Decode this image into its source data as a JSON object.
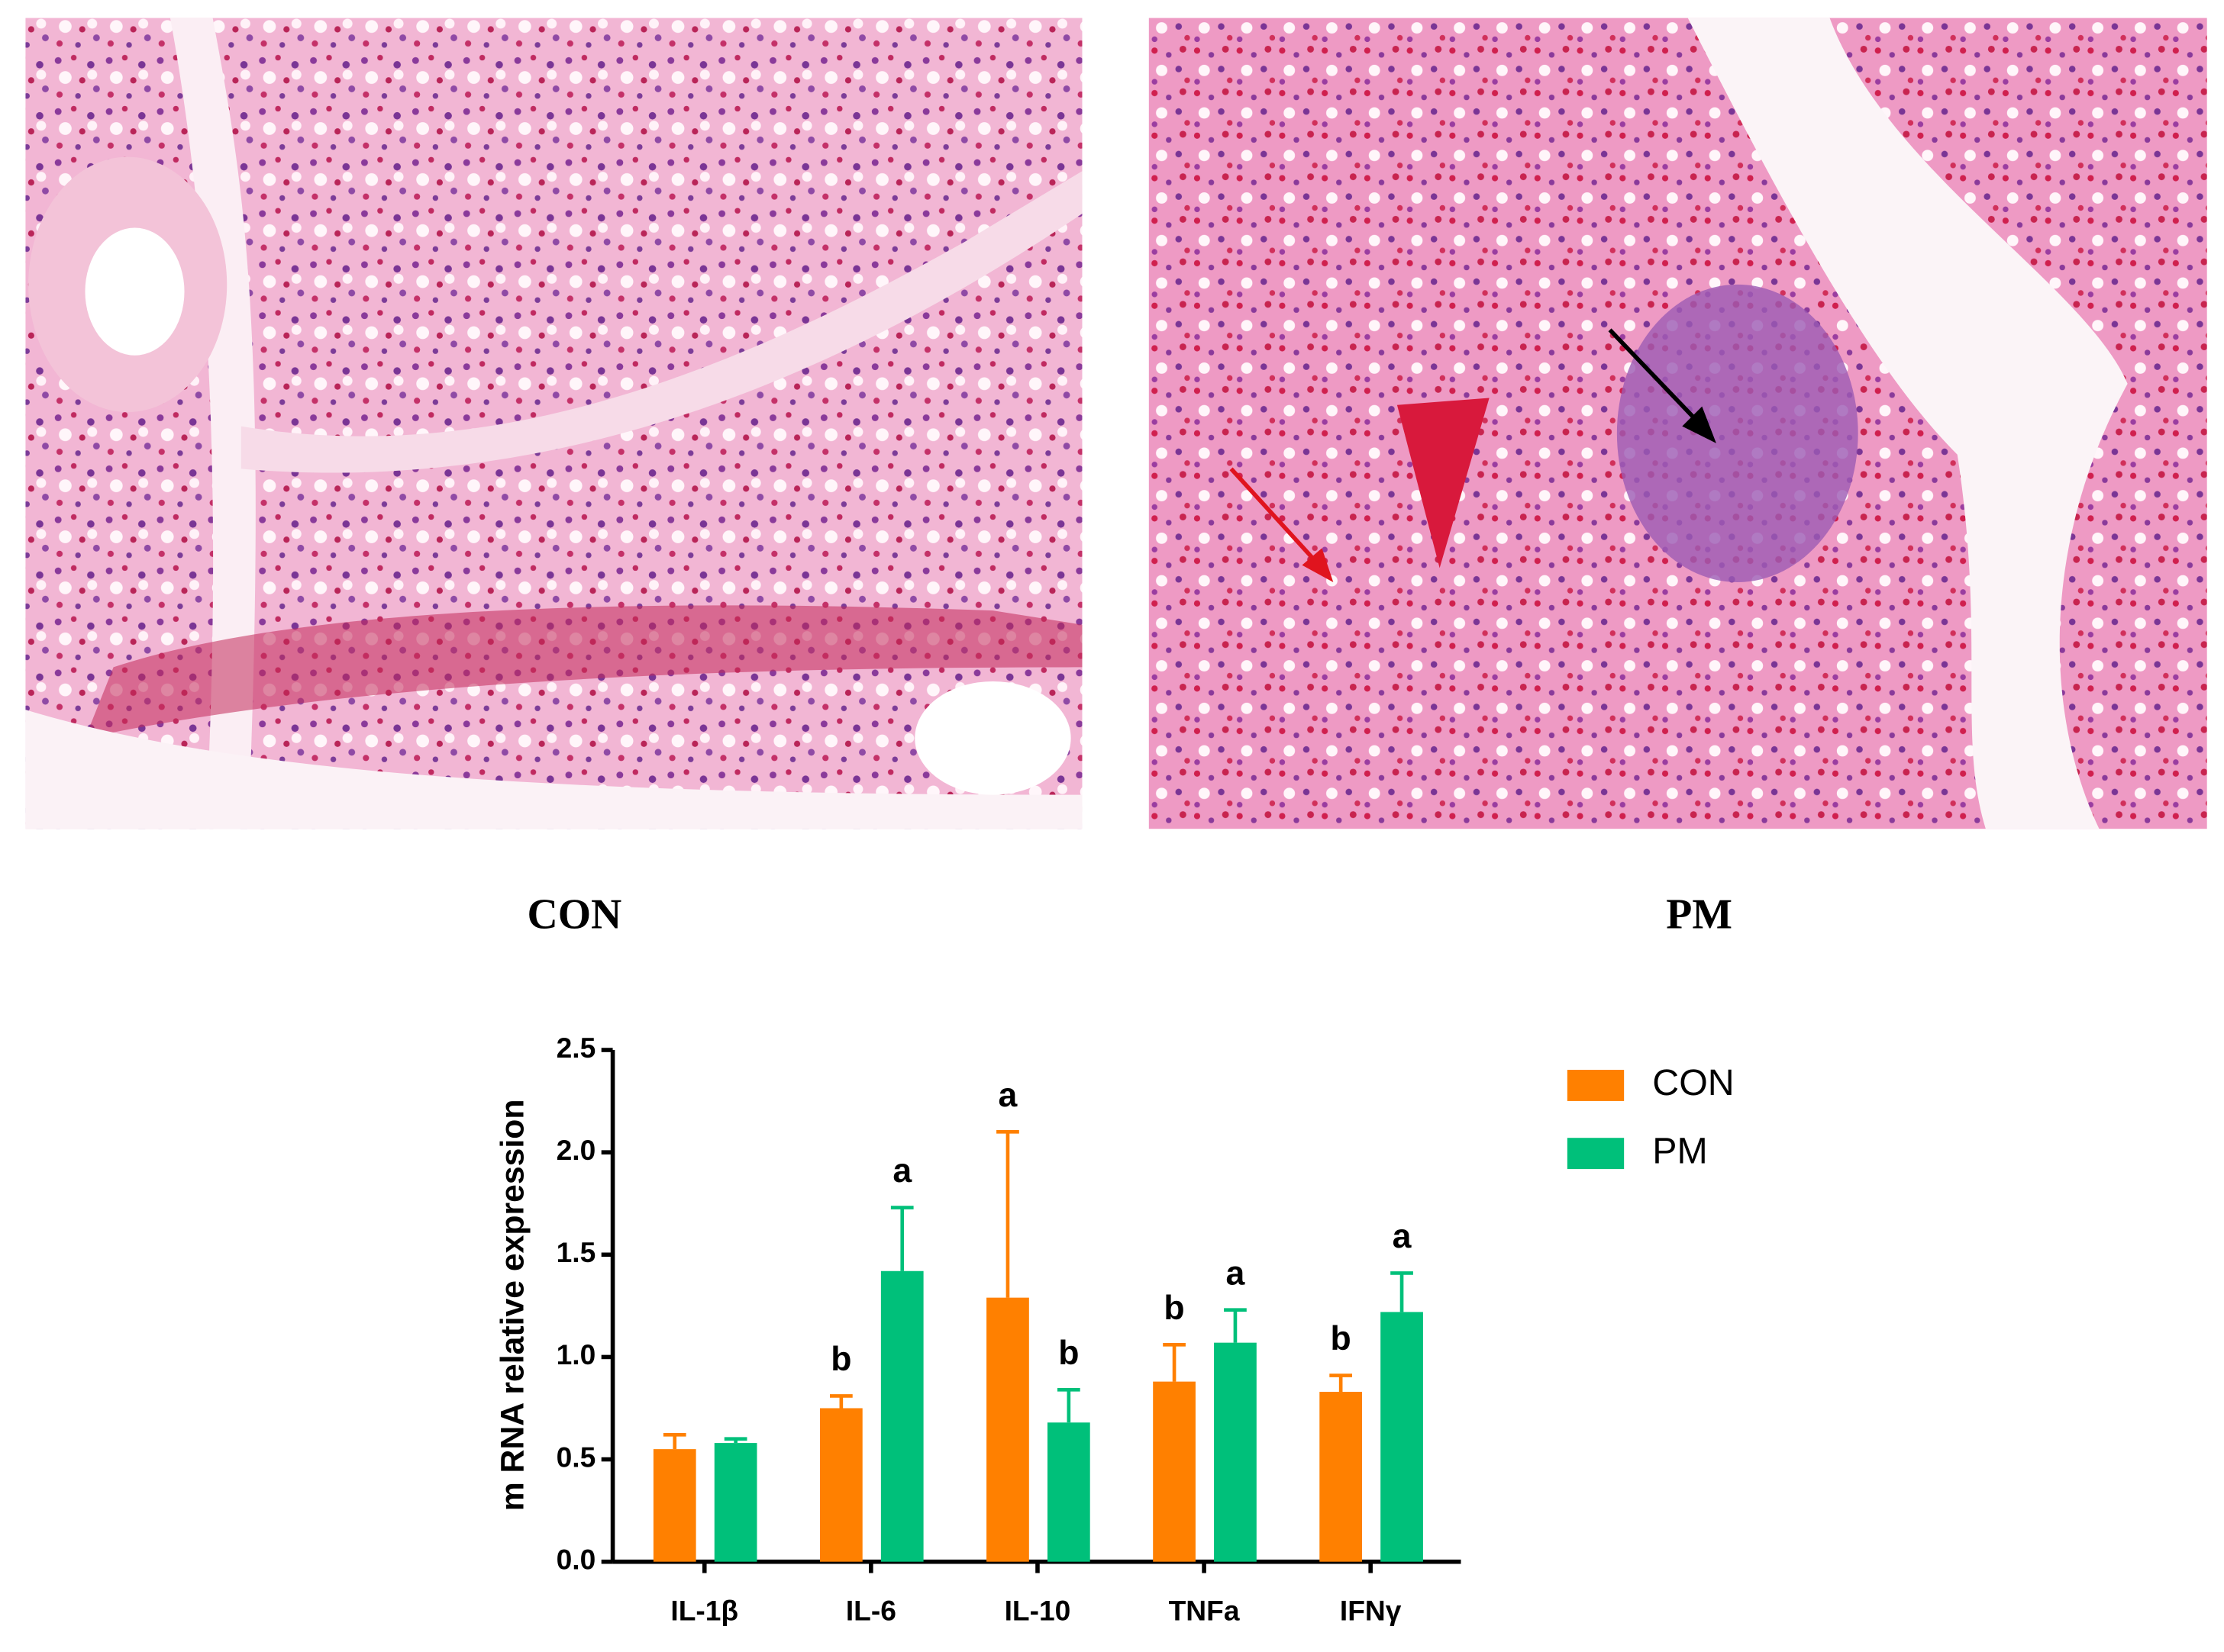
{
  "panels": [
    {
      "label": "CON"
    },
    {
      "label": "PM"
    }
  ],
  "chart_data": {
    "type": "bar",
    "y_label": "m RNA relative expression",
    "categories": [
      "IL-1β",
      "IL-6",
      "IL-10",
      "TNFa",
      "IFNγ"
    ],
    "series": [
      {
        "name": "CON",
        "color": "#ff8000",
        "values": [
          0.55,
          0.75,
          1.29,
          0.88,
          0.83
        ],
        "errors": [
          0.07,
          0.06,
          0.81,
          0.18,
          0.08
        ],
        "annotations": [
          null,
          "b",
          "a",
          "b",
          "b"
        ]
      },
      {
        "name": "PM",
        "color": "#00c07a",
        "values": [
          0.58,
          1.42,
          0.68,
          1.07,
          1.22
        ],
        "errors": [
          0.02,
          0.31,
          0.16,
          0.16,
          0.19
        ],
        "annotations": [
          null,
          "a",
          "b",
          "a",
          "a"
        ]
      }
    ],
    "ylim": [
      0,
      2.5
    ],
    "yticks": [
      {
        "value": 0,
        "label": "0.0"
      },
      {
        "value": 0.5,
        "label": "0.5"
      },
      {
        "value": 1,
        "label": "1.0"
      },
      {
        "value": 1.5,
        "label": "1.5"
      },
      {
        "value": 2,
        "label": "2.0"
      },
      {
        "value": 2.5,
        "label": "2.5"
      }
    ]
  }
}
